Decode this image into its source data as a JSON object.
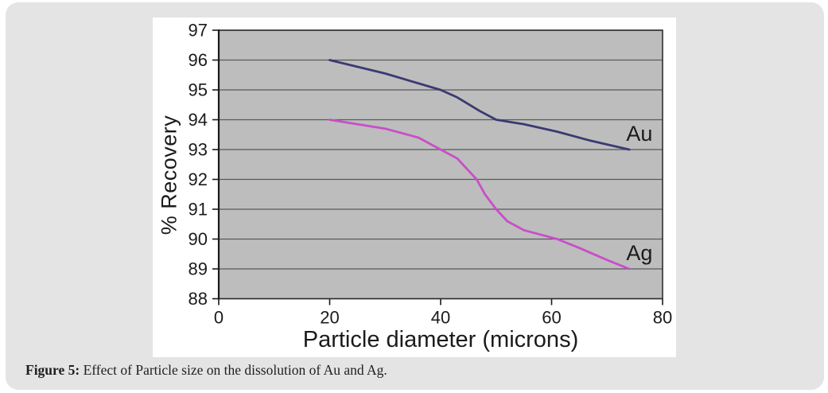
{
  "caption": {
    "label": "Figure 5:",
    "text": " Effect of Particle size on the dissolution of Au and Ag."
  },
  "colors": {
    "panel_bg": "#e4e4e4",
    "card_bg": "#ffffff",
    "plot_bg": "#bdbdbd",
    "grid": "#5a5a5a",
    "plot_border": "#2d2d2d",
    "axis": "#1a1a1a",
    "text": "#1b1b1b",
    "au_line": "#3a3a72",
    "ag_line": "#c94ec9"
  },
  "chart_data": {
    "type": "line",
    "title": "",
    "xlabel": "Particle diameter (microns)",
    "ylabel": "% Recovery",
    "xlim": [
      0,
      80
    ],
    "ylim": [
      88,
      97
    ],
    "x_ticks": [
      0,
      20,
      40,
      60,
      80
    ],
    "y_ticks": [
      97,
      96,
      95,
      94,
      93,
      92,
      91,
      90,
      89,
      88
    ],
    "grid": "horizontal gridlines at every 1 unit of % Recovery",
    "legend_position": "inline labels at right end of each line",
    "series": [
      {
        "name": "Au",
        "color": "#3a3a72",
        "label_at": [
          78.2,
          93.3
        ],
        "points": [
          [
            20,
            96
          ],
          [
            30,
            95.55
          ],
          [
            40,
            95
          ],
          [
            43,
            94.75
          ],
          [
            47,
            94.3
          ],
          [
            50,
            94
          ],
          [
            55,
            93.85
          ],
          [
            61,
            93.6
          ],
          [
            67,
            93.3
          ],
          [
            74,
            93
          ]
        ]
      },
      {
        "name": "Ag",
        "color": "#c94ec9",
        "label_at": [
          78.2,
          89.3
        ],
        "points": [
          [
            20,
            94
          ],
          [
            30,
            93.7
          ],
          [
            36,
            93.4
          ],
          [
            40,
            93
          ],
          [
            43,
            92.7
          ],
          [
            45,
            92.3
          ],
          [
            46.5,
            92
          ],
          [
            48,
            91.5
          ],
          [
            50,
            91
          ],
          [
            52,
            90.6
          ],
          [
            55,
            90.3
          ],
          [
            61,
            90
          ],
          [
            65,
            89.7
          ],
          [
            70,
            89.3
          ],
          [
            74,
            89
          ]
        ]
      }
    ]
  }
}
